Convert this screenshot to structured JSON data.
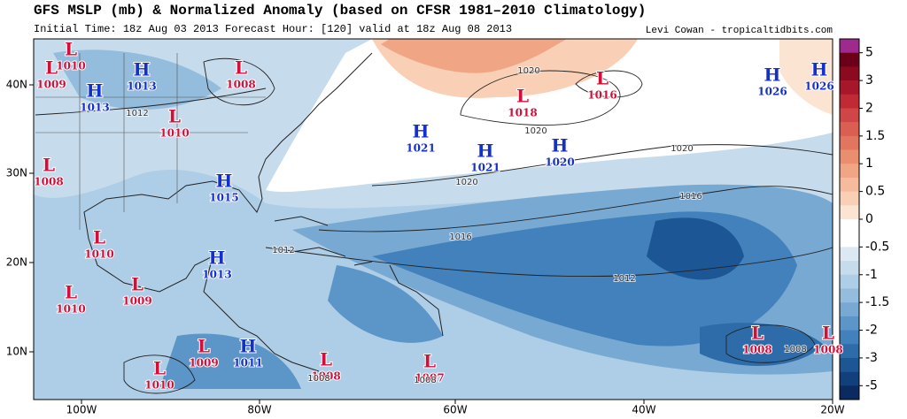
{
  "header": {
    "title": "GFS MSLP (mb) & Normalized Anomaly (based on CFSR 1981–2010 Climatology)",
    "subtitle": "Initial Time: 18z Aug 03 2013 Forecast Hour: [120] valid at 18z Aug 08 2013",
    "credit": "Levi Cowan - tropicaltidbits.com"
  },
  "map": {
    "lon_labels": [
      "100W",
      "80W",
      "60W",
      "40W",
      "20W"
    ],
    "lat_labels": [
      "40N",
      "30N",
      "20N",
      "10N"
    ],
    "centers": [
      {
        "letter": "L",
        "value": "1010"
      },
      {
        "letter": "L",
        "value": "1009"
      },
      {
        "letter": "H",
        "value": "1013"
      },
      {
        "letter": "H",
        "value": "1013"
      },
      {
        "letter": "L",
        "value": "1008"
      },
      {
        "letter": "L",
        "value": "1010"
      },
      {
        "letter": "L",
        "value": "1008"
      },
      {
        "letter": "H",
        "value": "1015"
      },
      {
        "letter": "L",
        "value": "1010"
      },
      {
        "letter": "H",
        "value": "1013"
      },
      {
        "letter": "L",
        "value": "1010"
      },
      {
        "letter": "L",
        "value": "1009"
      },
      {
        "letter": "L",
        "value": "1009"
      },
      {
        "letter": "H",
        "value": "1011"
      },
      {
        "letter": "L",
        "value": "1010"
      },
      {
        "letter": "L",
        "value": "1008"
      },
      {
        "letter": "L",
        "value": "1007"
      },
      {
        "letter": "H",
        "value": "1021"
      },
      {
        "letter": "H",
        "value": "1021"
      },
      {
        "letter": "H",
        "value": "1020"
      },
      {
        "letter": "L",
        "value": "1018"
      },
      {
        "letter": "L",
        "value": "1016"
      },
      {
        "letter": "H",
        "value": "1026"
      },
      {
        "letter": "H",
        "value": "1026"
      },
      {
        "letter": "L",
        "value": "1008"
      },
      {
        "letter": "L",
        "value": "1008"
      }
    ],
    "isobar_labels": [
      "1012",
      "1020",
      "1020",
      "1020",
      "1020",
      "1016",
      "1016",
      "1012",
      "1012",
      "1008",
      "1008",
      "1008"
    ]
  },
  "colorbar": {
    "labels": [
      "5",
      "3",
      "2",
      "1.5",
      "1",
      "0.5",
      "0",
      "-0.5",
      "-1",
      "-1.5",
      "-2",
      "-3",
      "-5"
    ],
    "colors": [
      "#9e2a8e",
      "#6b0018",
      "#8b0a1f",
      "#a8162a",
      "#bf2a35",
      "#d04545",
      "#da5e52",
      "#e27560",
      "#ea8e70",
      "#f0a585",
      "#f5bb9c",
      "#f9d0b6",
      "#fce4d3",
      "#ffffff",
      "#ffffff",
      "#dde9f2",
      "#c6dbec",
      "#aecde6",
      "#93bcdd",
      "#78a9d3",
      "#5c95c8",
      "#4281bb",
      "#2d6ca9",
      "#1d5695",
      "#12407c",
      "#0a2a60"
    ]
  }
}
